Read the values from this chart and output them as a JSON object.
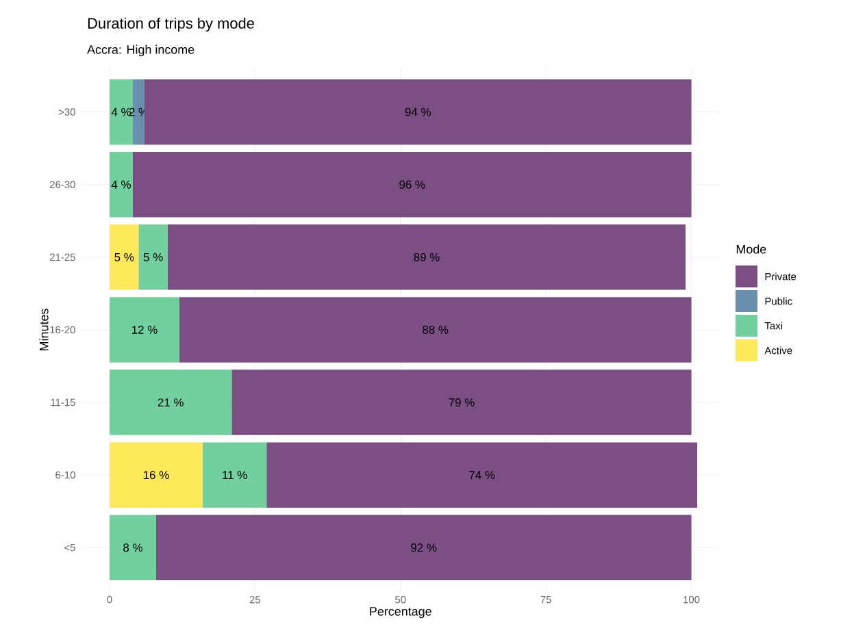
{
  "chart_data": {
    "type": "bar",
    "orientation": "horizontal",
    "stacked": true,
    "title": "Duration of trips by mode",
    "subtitle": "Accra: High income",
    "xlabel": "Percentage",
    "ylabel": "Minutes",
    "legend_title": "Mode",
    "legend": "right",
    "grid": true,
    "categories": [
      ">30",
      "26-30",
      "21-25",
      "16-20",
      "11-15",
      "6-10",
      "<5"
    ],
    "xlim": [
      -5,
      105
    ],
    "xticks": [
      0,
      25,
      50,
      75,
      100
    ],
    "series": [
      {
        "name": "Active",
        "color": "#fde85a",
        "values": [
          null,
          null,
          5,
          null,
          null,
          16,
          null
        ],
        "value_labels": [
          null,
          null,
          "5 %",
          null,
          null,
          "16 %",
          null
        ]
      },
      {
        "name": "Taxi",
        "color": "#72cf9e",
        "values": [
          4,
          4,
          5,
          12,
          21,
          11,
          8
        ],
        "value_labels": [
          "4 %",
          "4 %",
          "5 %",
          "12 %",
          "21 %",
          "11 %",
          "8 %"
        ]
      },
      {
        "name": "Public",
        "color": "#6a8fae",
        "values": [
          2,
          null,
          null,
          null,
          null,
          null,
          null
        ],
        "value_labels": [
          "2 %",
          null,
          null,
          null,
          null,
          null,
          null
        ]
      },
      {
        "name": "Private",
        "color": "#7b4f84",
        "values": [
          94,
          96,
          89,
          88,
          79,
          74,
          92
        ],
        "value_labels": [
          "94 %",
          "96 %",
          "89 %",
          "88 %",
          "79 %",
          "74 %",
          "92 %"
        ]
      }
    ]
  }
}
